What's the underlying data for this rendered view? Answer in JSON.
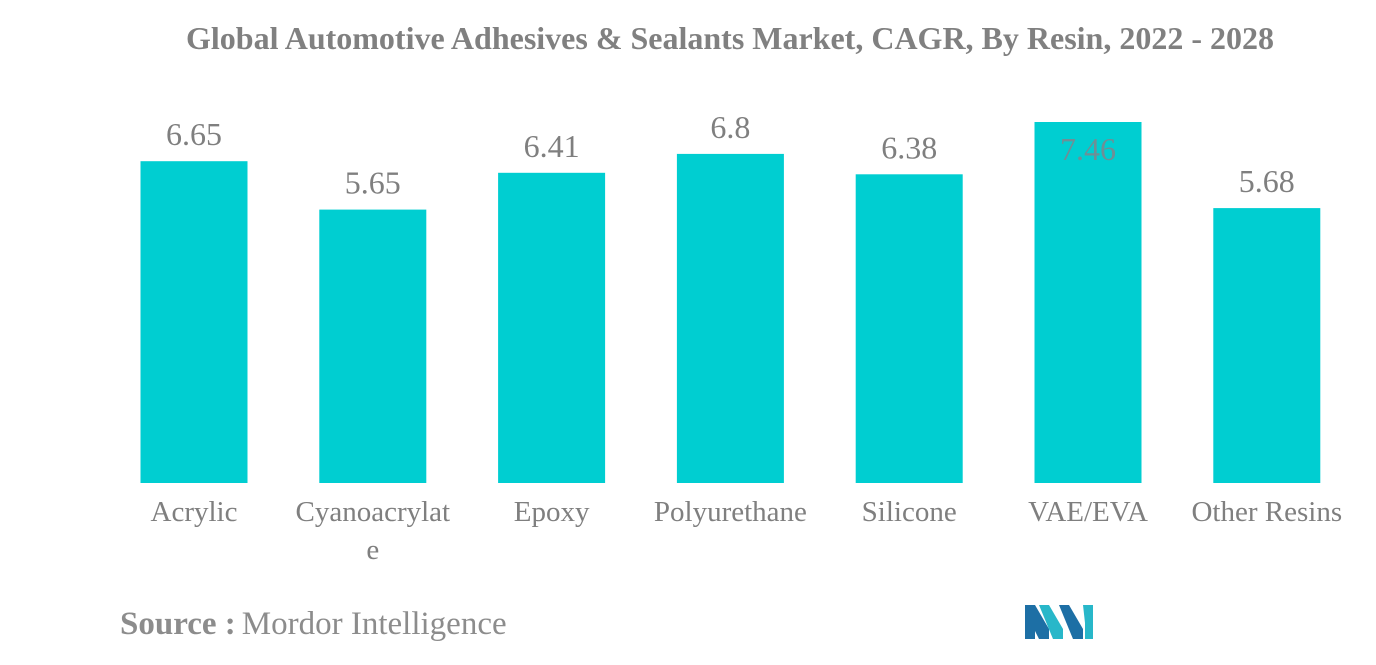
{
  "title": "Global Automotive Adhesives & Sealants Market, CAGR, By Resin, 2022 - 2028",
  "source": {
    "label": "Source :",
    "text": "Mordor Intelligence"
  },
  "logo": {
    "icon": "mordor-intelligence-logo",
    "colors": [
      "#1d6fa5",
      "#28b7c9"
    ]
  },
  "colors": {
    "bar": "#00ced1",
    "label": "#7f7f7f",
    "value_label_on_bar": "#6e8f96"
  },
  "chart_data": {
    "type": "bar",
    "title": "Global Automotive Adhesives & Sealants Market, CAGR, By Resin, 2022 - 2028",
    "categories": [
      [
        "Acrylic"
      ],
      [
        "Cyanoacrylat",
        "e"
      ],
      [
        "Epoxy"
      ],
      [
        "Polyurethane"
      ],
      [
        "Silicone"
      ],
      [
        "VAE/EVA"
      ],
      [
        "Other Resins"
      ]
    ],
    "values": [
      6.65,
      5.65,
      6.41,
      6.8,
      6.38,
      7.46,
      5.68
    ],
    "value_labels": [
      "6.65",
      "5.65",
      "6.41",
      "6.8",
      "6.38",
      "7.46",
      "5.68"
    ],
    "xlabel": "",
    "ylabel": "",
    "ylim": [
      0,
      7.46
    ],
    "grid": false,
    "legend": "none"
  }
}
